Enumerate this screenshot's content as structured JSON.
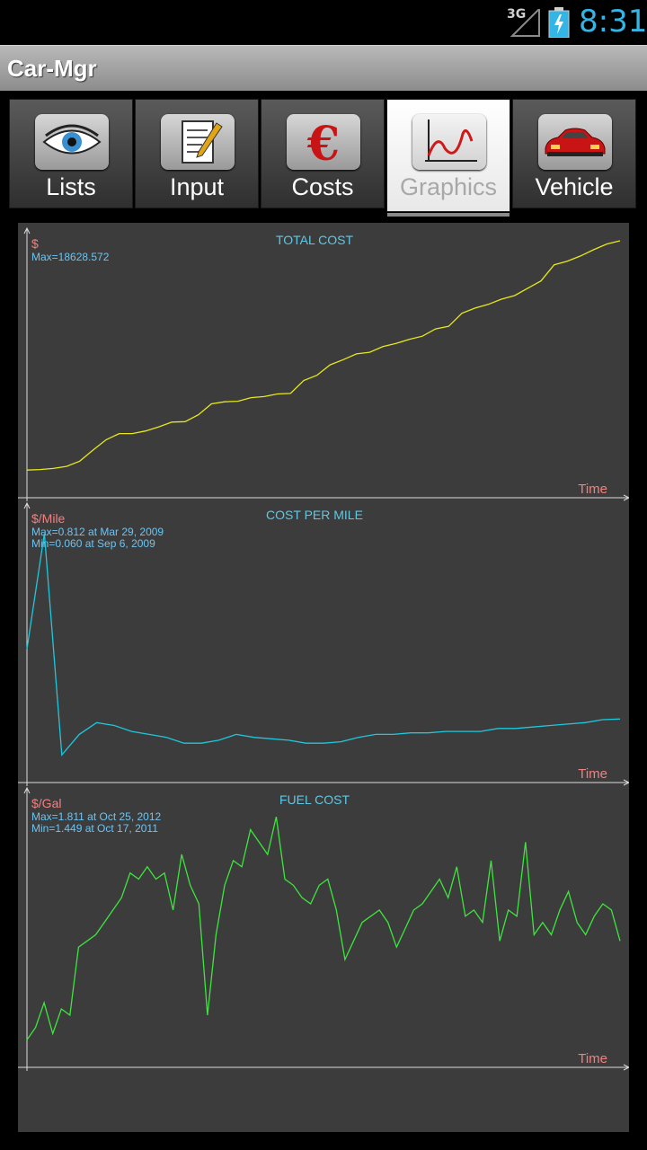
{
  "status_bar": {
    "network": "3G",
    "time": "8:31",
    "clock_color": "#33b5e5",
    "battery_icon": "battery-charging-icon",
    "signal_icon": "signal-icon"
  },
  "app": {
    "title": "Car-Mgr"
  },
  "tabs": [
    {
      "label": "Lists",
      "icon": "eye-icon",
      "active": false
    },
    {
      "label": "Input",
      "icon": "notepad-pencil-icon",
      "active": false
    },
    {
      "label": "Costs",
      "icon": "euro-icon",
      "active": false
    },
    {
      "label": "Graphics",
      "icon": "line-graph-icon",
      "active": true
    },
    {
      "label": "Vehicle",
      "icon": "red-car-icon",
      "active": false
    }
  ],
  "colors": {
    "title_text": "#5ec8e6",
    "unit_text": "#f08080",
    "info_text": "#6fc3f0",
    "axis": "#dddddd",
    "panel_bg": "#3c3c3c"
  },
  "chart_data": [
    {
      "type": "line",
      "title": "TOTAL COST",
      "ylabel": "$",
      "xlabel": "Time",
      "info": [
        "Max=18628.572"
      ],
      "color": "#e8e81a",
      "ylim": [
        0,
        18628.572
      ],
      "y": [
        1023,
        1063,
        1143,
        1303,
        1703,
        2543,
        3343,
        3823,
        3823,
        4023,
        4343,
        4703,
        4743,
        5263,
        6103,
        6263,
        6303,
        6583,
        6663,
        6863,
        6903,
        7903,
        8303,
        9103,
        9503,
        9943,
        10063,
        10503,
        10743,
        11063,
        11303,
        11863,
        12063,
        13063,
        13463,
        13743,
        14143,
        14423,
        14983,
        15543,
        16783,
        17063,
        17463,
        17943,
        18383,
        18628.572
      ]
    },
    {
      "type": "line",
      "title": "COST PER MILE",
      "ylabel": "$/Mile",
      "xlabel": "Time",
      "info": [
        "Max=0.812 at Mar 29, 2009",
        "Min=0.060 at Sep 6, 2009"
      ],
      "color": "#1ec8dc",
      "ylim": [
        0,
        0.86
      ],
      "y": [
        0.42,
        0.812,
        0.06,
        0.13,
        0.17,
        0.16,
        0.14,
        0.13,
        0.12,
        0.1,
        0.1,
        0.11,
        0.13,
        0.12,
        0.115,
        0.11,
        0.1,
        0.1,
        0.105,
        0.12,
        0.13,
        0.13,
        0.135,
        0.135,
        0.14,
        0.14,
        0.14,
        0.15,
        0.15,
        0.155,
        0.16,
        0.165,
        0.17,
        0.18,
        0.182
      ]
    },
    {
      "type": "line",
      "title": "FUEL COST",
      "ylabel": "$/Gal",
      "xlabel": "Time",
      "info": [
        "Max=1.811 at Oct 25, 2012",
        "Min=1.449 at Oct 17, 2011"
      ],
      "color": "#3ce63c",
      "ylim": [
        1.42,
        1.83
      ],
      "y": [
        1.45,
        1.47,
        1.51,
        1.46,
        1.5,
        1.49,
        1.6,
        1.61,
        1.62,
        1.64,
        1.66,
        1.68,
        1.72,
        1.71,
        1.73,
        1.71,
        1.72,
        1.66,
        1.75,
        1.7,
        1.67,
        1.49,
        1.62,
        1.7,
        1.74,
        1.73,
        1.79,
        1.77,
        1.75,
        1.811,
        1.71,
        1.7,
        1.68,
        1.67,
        1.7,
        1.71,
        1.66,
        1.58,
        1.61,
        1.64,
        1.65,
        1.66,
        1.64,
        1.6,
        1.63,
        1.66,
        1.67,
        1.69,
        1.71,
        1.68,
        1.73,
        1.65,
        1.66,
        1.64,
        1.74,
        1.61,
        1.66,
        1.65,
        1.77,
        1.62,
        1.64,
        1.62,
        1.66,
        1.69,
        1.64,
        1.62,
        1.65,
        1.67,
        1.66,
        1.61
      ]
    }
  ]
}
